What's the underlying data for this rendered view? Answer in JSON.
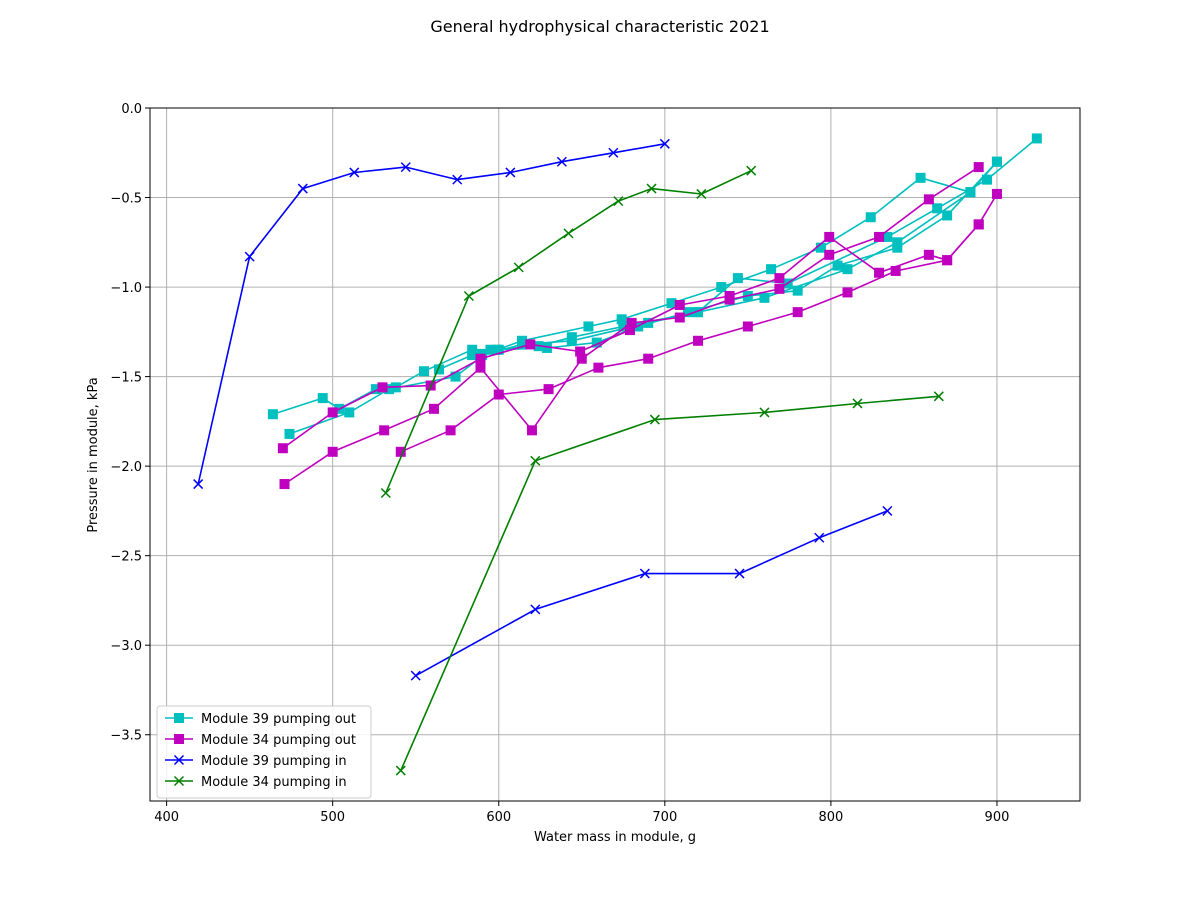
{
  "chart_data": {
    "type": "line",
    "title": "General hydrophysical characteristic 2021",
    "xlabel": "Water mass in module, g",
    "ylabel": "Pressure in module, kPa",
    "xlim": [
      390,
      950
    ],
    "ylim": [
      -3.87,
      0.0
    ],
    "xticks": [
      400,
      500,
      600,
      700,
      800,
      900
    ],
    "xtick_labels": [
      "400",
      "500",
      "600",
      "700",
      "800",
      "900"
    ],
    "yticks": [
      0.0,
      -0.5,
      -1.0,
      -1.5,
      -2.0,
      -2.5,
      -3.0,
      -3.5
    ],
    "ytick_labels": [
      "0.0",
      "−0.5",
      "−1.0",
      "−1.5",
      "−2.0",
      "−2.5",
      "−3.0",
      "−3.5"
    ],
    "grid": true,
    "legend_position": "lower-left",
    "series": [
      {
        "name": "Module 39 pumping out",
        "color": "#00bfbf",
        "marker": "square",
        "segments": [
          [
            [
              464,
              -1.71
            ],
            [
              494,
              -1.62
            ],
            [
              504,
              -1.68
            ],
            [
              526,
              -1.57
            ],
            [
              538,
              -1.56
            ],
            [
              555,
              -1.47
            ],
            [
              584,
              -1.35
            ],
            [
              599,
              -1.35
            ],
            [
              614,
              -1.3
            ],
            [
              654,
              -1.22
            ],
            [
              674,
              -1.18
            ],
            [
              704,
              -1.09
            ],
            [
              734,
              -1.0
            ],
            [
              764,
              -0.9
            ],
            [
              794,
              -0.78
            ],
            [
              824,
              -0.61
            ],
            [
              854,
              -0.39
            ],
            [
              884,
              -0.47
            ],
            [
              900,
              -0.3
            ]
          ],
          [
            [
              474,
              -1.82
            ],
            [
              510,
              -1.7
            ],
            [
              534,
              -1.57
            ],
            [
              574,
              -1.5
            ],
            [
              595,
              -1.35
            ],
            [
              624,
              -1.33
            ],
            [
              644,
              -1.28
            ],
            [
              675,
              -1.22
            ],
            [
              720,
              -1.14
            ],
            [
              744,
              -0.95
            ],
            [
              774,
              -0.98
            ],
            [
              834,
              -0.72
            ],
            [
              864,
              -0.56
            ],
            [
              894,
              -0.4
            ],
            [
              924,
              -0.17
            ]
          ],
          [
            [
              564,
              -1.46
            ],
            [
              584,
              -1.38
            ],
            [
              600,
              -1.35
            ],
            [
              629,
              -1.34
            ],
            [
              659,
              -1.31
            ],
            [
              684,
              -1.22
            ],
            [
              714,
              -1.14
            ],
            [
              750,
              -1.05
            ],
            [
              780,
              -1.02
            ],
            [
              804,
              -0.88
            ],
            [
              840,
              -0.78
            ],
            [
              870,
              -0.6
            ],
            [
              900,
              -0.3
            ]
          ],
          [
            [
              590,
              -1.38
            ],
            [
              614,
              -1.32
            ],
            [
              644,
              -1.3
            ],
            [
              690,
              -1.2
            ],
            [
              720,
              -1.14
            ],
            [
              760,
              -1.06
            ],
            [
              810,
              -0.9
            ],
            [
              840,
              -0.75
            ],
            [
              884,
              -0.47
            ]
          ]
        ]
      },
      {
        "name": "Module 34 pumping out",
        "color": "#bf00bf",
        "marker": "square",
        "segments": [
          [
            [
              470,
              -1.9
            ],
            [
              500,
              -1.7
            ],
            [
              530,
              -1.56
            ],
            [
              559,
              -1.55
            ],
            [
              589,
              -1.4
            ],
            [
              619,
              -1.32
            ],
            [
              649,
              -1.36
            ],
            [
              679,
              -1.24
            ],
            [
              709,
              -1.1
            ],
            [
              739,
              -1.05
            ],
            [
              769,
              -0.95
            ],
            [
              799,
              -0.72
            ],
            [
              829,
              -0.92
            ],
            [
              859,
              -0.82
            ],
            [
              870,
              -0.85
            ],
            [
              889,
              -0.65
            ],
            [
              900,
              -0.48
            ]
          ],
          [
            [
              471,
              -2.1
            ],
            [
              500,
              -1.92
            ],
            [
              531,
              -1.8
            ],
            [
              561,
              -1.68
            ],
            [
              589,
              -1.45
            ],
            [
              620,
              -1.8
            ],
            [
              650,
              -1.4
            ],
            [
              680,
              -1.2
            ],
            [
              709,
              -1.17
            ],
            [
              739,
              -1.07
            ],
            [
              769,
              -1.01
            ],
            [
              799,
              -0.82
            ],
            [
              829,
              -0.72
            ],
            [
              859,
              -0.51
            ],
            [
              889,
              -0.33
            ]
          ],
          [
            [
              541,
              -1.92
            ],
            [
              571,
              -1.8
            ],
            [
              600,
              -1.6
            ],
            [
              630,
              -1.57
            ],
            [
              660,
              -1.45
            ],
            [
              690,
              -1.4
            ],
            [
              720,
              -1.3
            ],
            [
              750,
              -1.22
            ],
            [
              780,
              -1.14
            ],
            [
              810,
              -1.03
            ],
            [
              839,
              -0.91
            ],
            [
              870,
              -0.85
            ],
            [
              889,
              -0.65
            ]
          ]
        ]
      },
      {
        "name": "Module 39 pumping in",
        "color": "#0000ff",
        "marker": "x",
        "segments": [
          [
            [
              419,
              -2.1
            ],
            [
              450,
              -0.83
            ],
            [
              482,
              -0.45
            ],
            [
              513,
              -0.36
            ],
            [
              544,
              -0.33
            ],
            [
              575,
              -0.4
            ],
            [
              607,
              -0.36
            ],
            [
              638,
              -0.3
            ],
            [
              669,
              -0.25
            ],
            [
              700,
              -0.2
            ]
          ],
          [
            [
              550,
              -3.17
            ],
            [
              622,
              -2.8
            ],
            [
              688,
              -2.6
            ],
            [
              745,
              -2.6
            ],
            [
              793,
              -2.4
            ],
            [
              834,
              -2.25
            ]
          ]
        ]
      },
      {
        "name": "Module 34 pumping in",
        "color": "#008000",
        "marker": "x",
        "segments": [
          [
            [
              532,
              -2.15
            ],
            [
              582,
              -1.05
            ],
            [
              612,
              -0.89
            ],
            [
              642,
              -0.7
            ],
            [
              672,
              -0.52
            ],
            [
              692,
              -0.45
            ],
            [
              722,
              -0.48
            ],
            [
              752,
              -0.35
            ]
          ],
          [
            [
              541,
              -3.7
            ],
            [
              622,
              -1.97
            ],
            [
              694,
              -1.74
            ],
            [
              760,
              -1.7
            ],
            [
              816,
              -1.65
            ],
            [
              865,
              -1.61
            ]
          ]
        ]
      }
    ]
  }
}
